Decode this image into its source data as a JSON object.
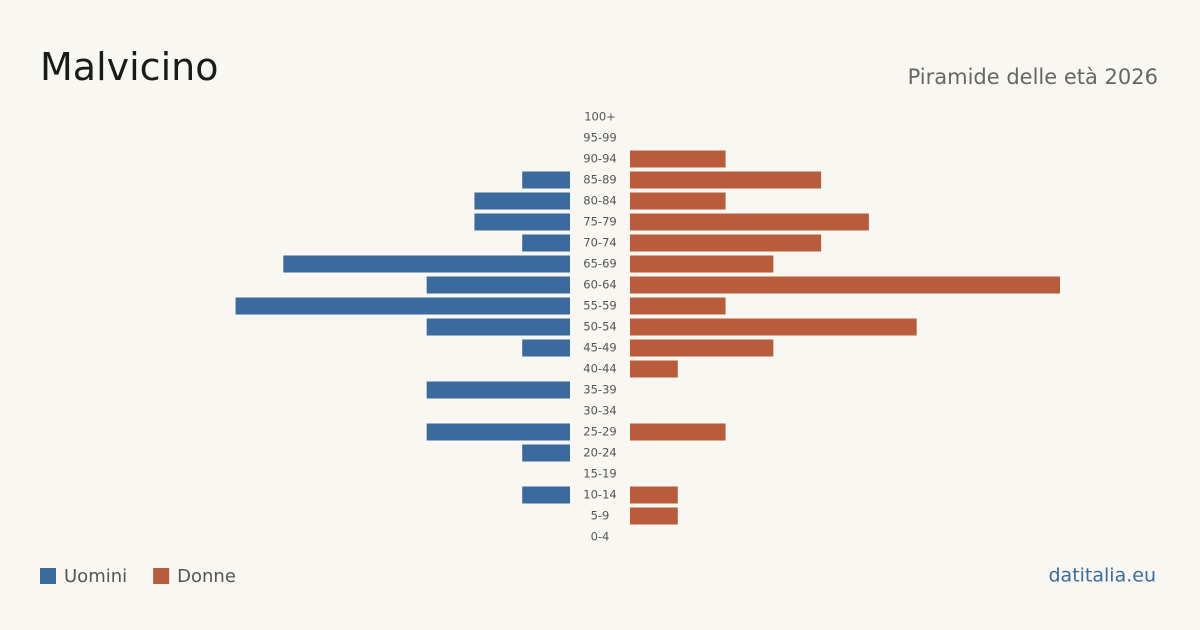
{
  "chart_data": {
    "type": "pyramid",
    "title": "Malvicino",
    "subtitle": "Piramide delle età 2026",
    "categories": [
      "100+",
      "95-99",
      "90-94",
      "85-89",
      "80-84",
      "75-79",
      "70-74",
      "65-69",
      "60-64",
      "55-59",
      "50-54",
      "45-49",
      "40-44",
      "35-39",
      "30-34",
      "25-29",
      "20-24",
      "15-19",
      "10-14",
      "5-9",
      "0-4"
    ],
    "series": [
      {
        "name": "Uomini",
        "color": "#3a6a9e",
        "values": [
          0,
          0,
          0,
          1,
          2,
          2,
          1,
          6,
          3,
          7,
          3,
          1,
          0,
          3,
          0,
          3,
          1,
          0,
          1,
          0,
          0
        ]
      },
      {
        "name": "Donne",
        "color": "#b85c3c",
        "values": [
          0,
          0,
          2,
          4,
          2,
          5,
          4,
          3,
          9,
          2,
          6,
          3,
          1,
          0,
          0,
          2,
          0,
          0,
          1,
          1,
          0
        ]
      }
    ],
    "source": "datitalia.eu"
  }
}
